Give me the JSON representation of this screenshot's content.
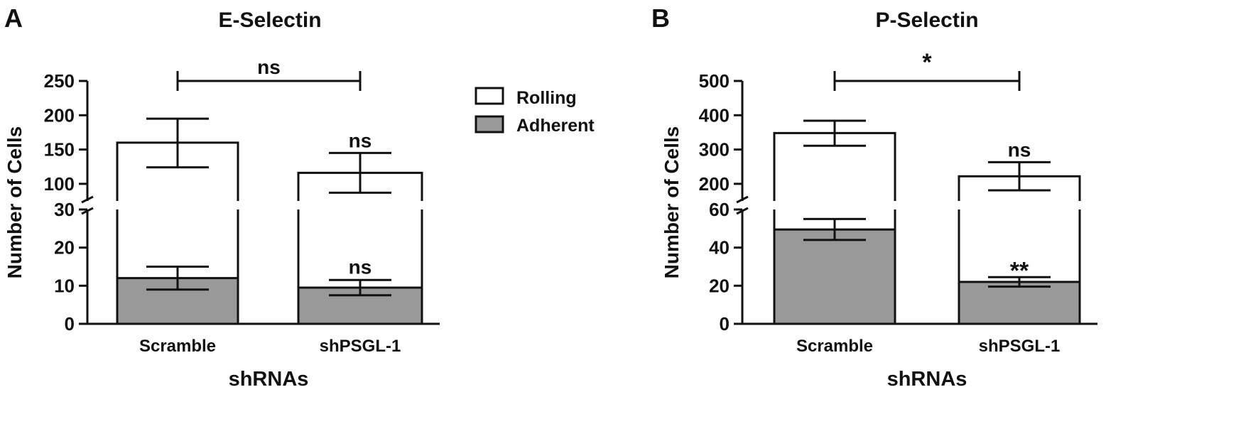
{
  "chart_data": [
    {
      "panel": "A",
      "type": "bar",
      "stacked": true,
      "broken_y_axis": true,
      "title": "E-Selectin",
      "xlabel": "shRNAs",
      "ylabel": "Number of Cells",
      "categories": [
        "Scramble",
        "shPSGL-1"
      ],
      "lower_axis": {
        "ylim": [
          0,
          30
        ],
        "ticks": [
          "0",
          "10",
          "20",
          "30"
        ]
      },
      "upper_axis": {
        "ylim": [
          75,
          250
        ],
        "ticks": [
          "100",
          "150",
          "200",
          "250"
        ]
      },
      "series": [
        {
          "name": "Rolling",
          "color": "#ffffff",
          "values": [
            160,
            116
          ],
          "err_low": [
            124,
            87
          ],
          "err_high": [
            195,
            145
          ]
        },
        {
          "name": "Adherent",
          "color": "#999999",
          "values": [
            12,
            9.5
          ],
          "err_low": [
            9,
            7.5
          ],
          "err_high": [
            15,
            11.5
          ]
        }
      ],
      "annotations": {
        "bracket": "ns",
        "rolling": [
          "",
          "ns"
        ],
        "adherent": [
          "",
          "ns"
        ]
      }
    },
    {
      "panel": "B",
      "type": "bar",
      "stacked": true,
      "broken_y_axis": true,
      "title": "P-Selectin",
      "xlabel": "shRNAs",
      "ylabel": "Number of Cells",
      "categories": [
        "Scramble",
        "shPSGL-1"
      ],
      "lower_axis": {
        "ylim": [
          0,
          60
        ],
        "ticks": [
          "0",
          "20",
          "40",
          "60"
        ]
      },
      "upper_axis": {
        "ylim": [
          150,
          500
        ],
        "ticks": [
          "200",
          "300",
          "400",
          "500"
        ]
      },
      "series": [
        {
          "name": "Rolling",
          "color": "#ffffff",
          "values": [
            348,
            222
          ],
          "err_low": [
            311,
            181
          ],
          "err_high": [
            384,
            263
          ]
        },
        {
          "name": "Adherent",
          "color": "#999999",
          "values": [
            49.5,
            22
          ],
          "err_low": [
            44,
            19.5
          ],
          "err_high": [
            55,
            24.5
          ]
        }
      ],
      "annotations": {
        "bracket": "*",
        "rolling": [
          "",
          "ns"
        ],
        "adherent": [
          "",
          "**"
        ]
      }
    }
  ],
  "legend": [
    {
      "label": "Rolling",
      "color": "#ffffff"
    },
    {
      "label": "Adherent",
      "color": "#999999"
    }
  ]
}
